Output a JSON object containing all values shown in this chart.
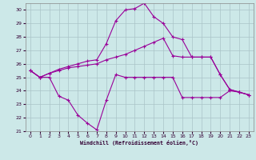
{
  "xlabel": "Windchill (Refroidissement éolien,°C)",
  "xlim": [
    -0.5,
    23.5
  ],
  "ylim": [
    21,
    30.5
  ],
  "yticks": [
    21,
    22,
    23,
    24,
    25,
    26,
    27,
    28,
    29,
    30
  ],
  "xticks": [
    0,
    1,
    2,
    3,
    4,
    5,
    6,
    7,
    8,
    9,
    10,
    11,
    12,
    13,
    14,
    15,
    16,
    17,
    18,
    19,
    20,
    21,
    22,
    23
  ],
  "background_color": "#cce8e8",
  "grid_color": "#aac4c8",
  "line_color": "#990099",
  "line1_x": [
    0,
    1,
    2,
    3,
    4,
    5,
    6,
    7,
    8,
    9,
    10,
    11,
    12,
    13,
    14,
    15,
    16,
    17,
    18,
    19,
    20,
    21,
    22,
    23
  ],
  "line1_y": [
    25.5,
    25.0,
    25.0,
    23.6,
    23.3,
    22.2,
    21.6,
    21.1,
    23.3,
    25.2,
    25.0,
    25.0,
    25.0,
    25.0,
    25.0,
    25.0,
    23.5,
    23.5,
    23.5,
    23.5,
    23.5,
    24.0,
    23.9,
    23.7
  ],
  "line2_x": [
    0,
    1,
    2,
    3,
    4,
    5,
    6,
    7,
    8,
    9,
    10,
    11,
    12,
    13,
    14,
    15,
    16,
    17,
    18,
    19,
    20,
    21,
    22,
    23
  ],
  "line2_y": [
    25.5,
    25.0,
    25.3,
    25.5,
    25.7,
    25.8,
    25.9,
    26.0,
    26.3,
    26.5,
    26.7,
    27.0,
    27.3,
    27.6,
    27.9,
    26.6,
    26.5,
    26.5,
    26.5,
    26.5,
    25.2,
    24.1,
    23.9,
    23.7
  ],
  "line3_x": [
    0,
    1,
    2,
    3,
    4,
    5,
    6,
    7,
    8,
    9,
    10,
    11,
    12,
    13,
    14,
    15,
    16,
    17,
    18,
    19,
    20,
    21,
    22,
    23
  ],
  "line3_y": [
    25.5,
    25.0,
    25.3,
    25.6,
    25.8,
    26.0,
    26.2,
    26.3,
    27.5,
    29.2,
    30.0,
    30.1,
    30.5,
    29.5,
    29.0,
    28.0,
    27.8,
    26.5,
    26.5,
    26.5,
    25.2,
    24.1,
    23.9,
    23.7
  ]
}
